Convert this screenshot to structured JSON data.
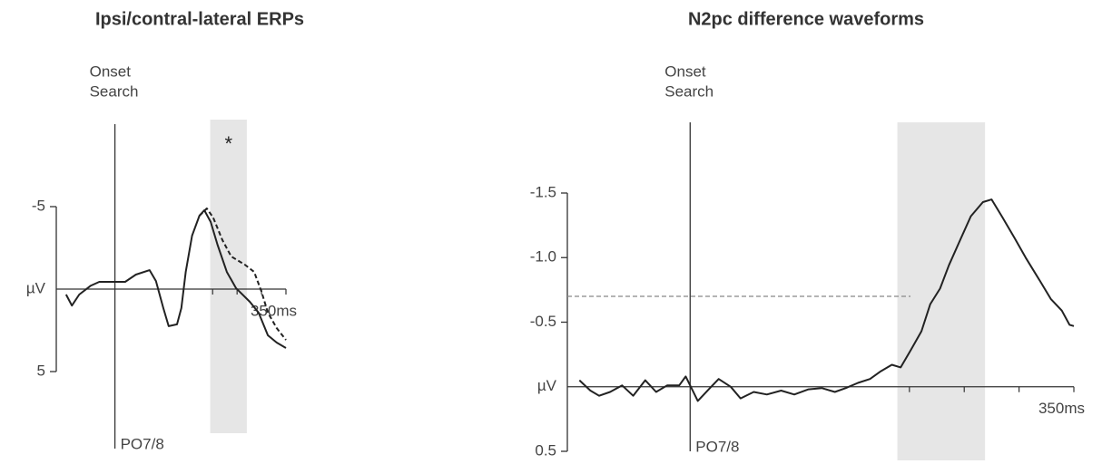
{
  "chart_data": [
    {
      "type": "line",
      "title": "Ipsi/contral-lateral ERPs",
      "onset_label": [
        "Onset",
        "Search"
      ],
      "electrode": "PO7/8",
      "significance": "*",
      "xlim": [
        -120,
        350
      ],
      "ylim": [
        5,
        -5
      ],
      "shade": [
        195,
        270
      ],
      "xticks": [
        {
          "value": 350,
          "label": "350ms"
        }
      ],
      "xminor": [
        200,
        250,
        300
      ],
      "yticks": [
        -5,
        {
          "value": 0,
          "label": "µV"
        },
        5
      ],
      "series": [
        {
          "style": "solid",
          "color": "#222",
          "x": [
            -100,
            -88,
            -73,
            -50,
            -32,
            -4,
            21,
            43,
            71,
            84,
            99,
            110,
            127,
            136,
            145,
            158,
            173,
            183,
            196,
            210,
            229,
            248,
            276,
            294,
            313,
            331,
            350
          ],
          "values": [
            0.33,
            1.0,
            0.33,
            -0.2,
            -0.44,
            -0.44,
            -0.44,
            -0.88,
            -1.15,
            -0.49,
            1.15,
            2.25,
            2.14,
            1.15,
            -1.04,
            -3.24,
            -4.45,
            -4.78,
            -4.07,
            -2.69,
            -1.04,
            -0.05,
            0.77,
            1.43,
            2.8,
            3.24,
            3.57
          ]
        },
        {
          "style": "dashed",
          "color": "#222",
          "x": [
            173,
            188,
            201,
            220,
            238,
            266,
            285,
            300,
            313,
            331,
            350
          ],
          "values": [
            -4.45,
            -4.89,
            -4.34,
            -2.97,
            -1.98,
            -1.48,
            -1.04,
            0.16,
            1.43,
            2.36,
            3.08
          ]
        }
      ]
    },
    {
      "type": "line",
      "title": "N2pc difference waveforms",
      "onset_label": [
        "Onset",
        "Search"
      ],
      "electrode": "PO7/8",
      "xlim": [
        -112,
        350
      ],
      "ylim": [
        0.5,
        -1.5
      ],
      "shade": [
        189,
        269
      ],
      "hline": {
        "value": -0.7,
        "xlim": [
          -112,
          201
        ]
      },
      "xticks": [
        {
          "value": 350,
          "label": "350ms"
        }
      ],
      "xminor": [
        200,
        250,
        300
      ],
      "yticks": [
        {
          "value": -1.5,
          "label": "-1.5"
        },
        {
          "value": -1.0,
          "label": "-1.0"
        },
        {
          "value": -0.5,
          "label": "-0.5"
        },
        {
          "value": 0,
          "label": "µV"
        },
        0.5
      ],
      "series": [
        {
          "style": "solid",
          "color": "#222",
          "x": [
            -101,
            -91,
            -83,
            -73,
            -62,
            -52,
            -41,
            -31,
            -21,
            -10,
            -4,
            7,
            17,
            26,
            37,
            46,
            58,
            70,
            83,
            95,
            108,
            120,
            132,
            142,
            153,
            164,
            174,
            184,
            192,
            201,
            211,
            219,
            228,
            236,
            247,
            256,
            267,
            275,
            285,
            296,
            306,
            319,
            329,
            339,
            346,
            350
          ],
          "values": [
            -0.05,
            0.03,
            0.07,
            0.04,
            -0.01,
            0.07,
            -0.05,
            0.04,
            -0.01,
            -0.01,
            -0.08,
            0.11,
            0.02,
            -0.06,
            0,
            0.09,
            0.04,
            0.06,
            0.03,
            0.06,
            0.02,
            0.01,
            0.04,
            0.01,
            -0.03,
            -0.06,
            -0.12,
            -0.17,
            -0.15,
            -0.28,
            -0.43,
            -0.64,
            -0.76,
            -0.94,
            -1.15,
            -1.32,
            -1.43,
            -1.45,
            -1.31,
            -1.15,
            -1.0,
            -0.82,
            -0.68,
            -0.59,
            -0.48,
            -0.47
          ]
        }
      ]
    }
  ]
}
